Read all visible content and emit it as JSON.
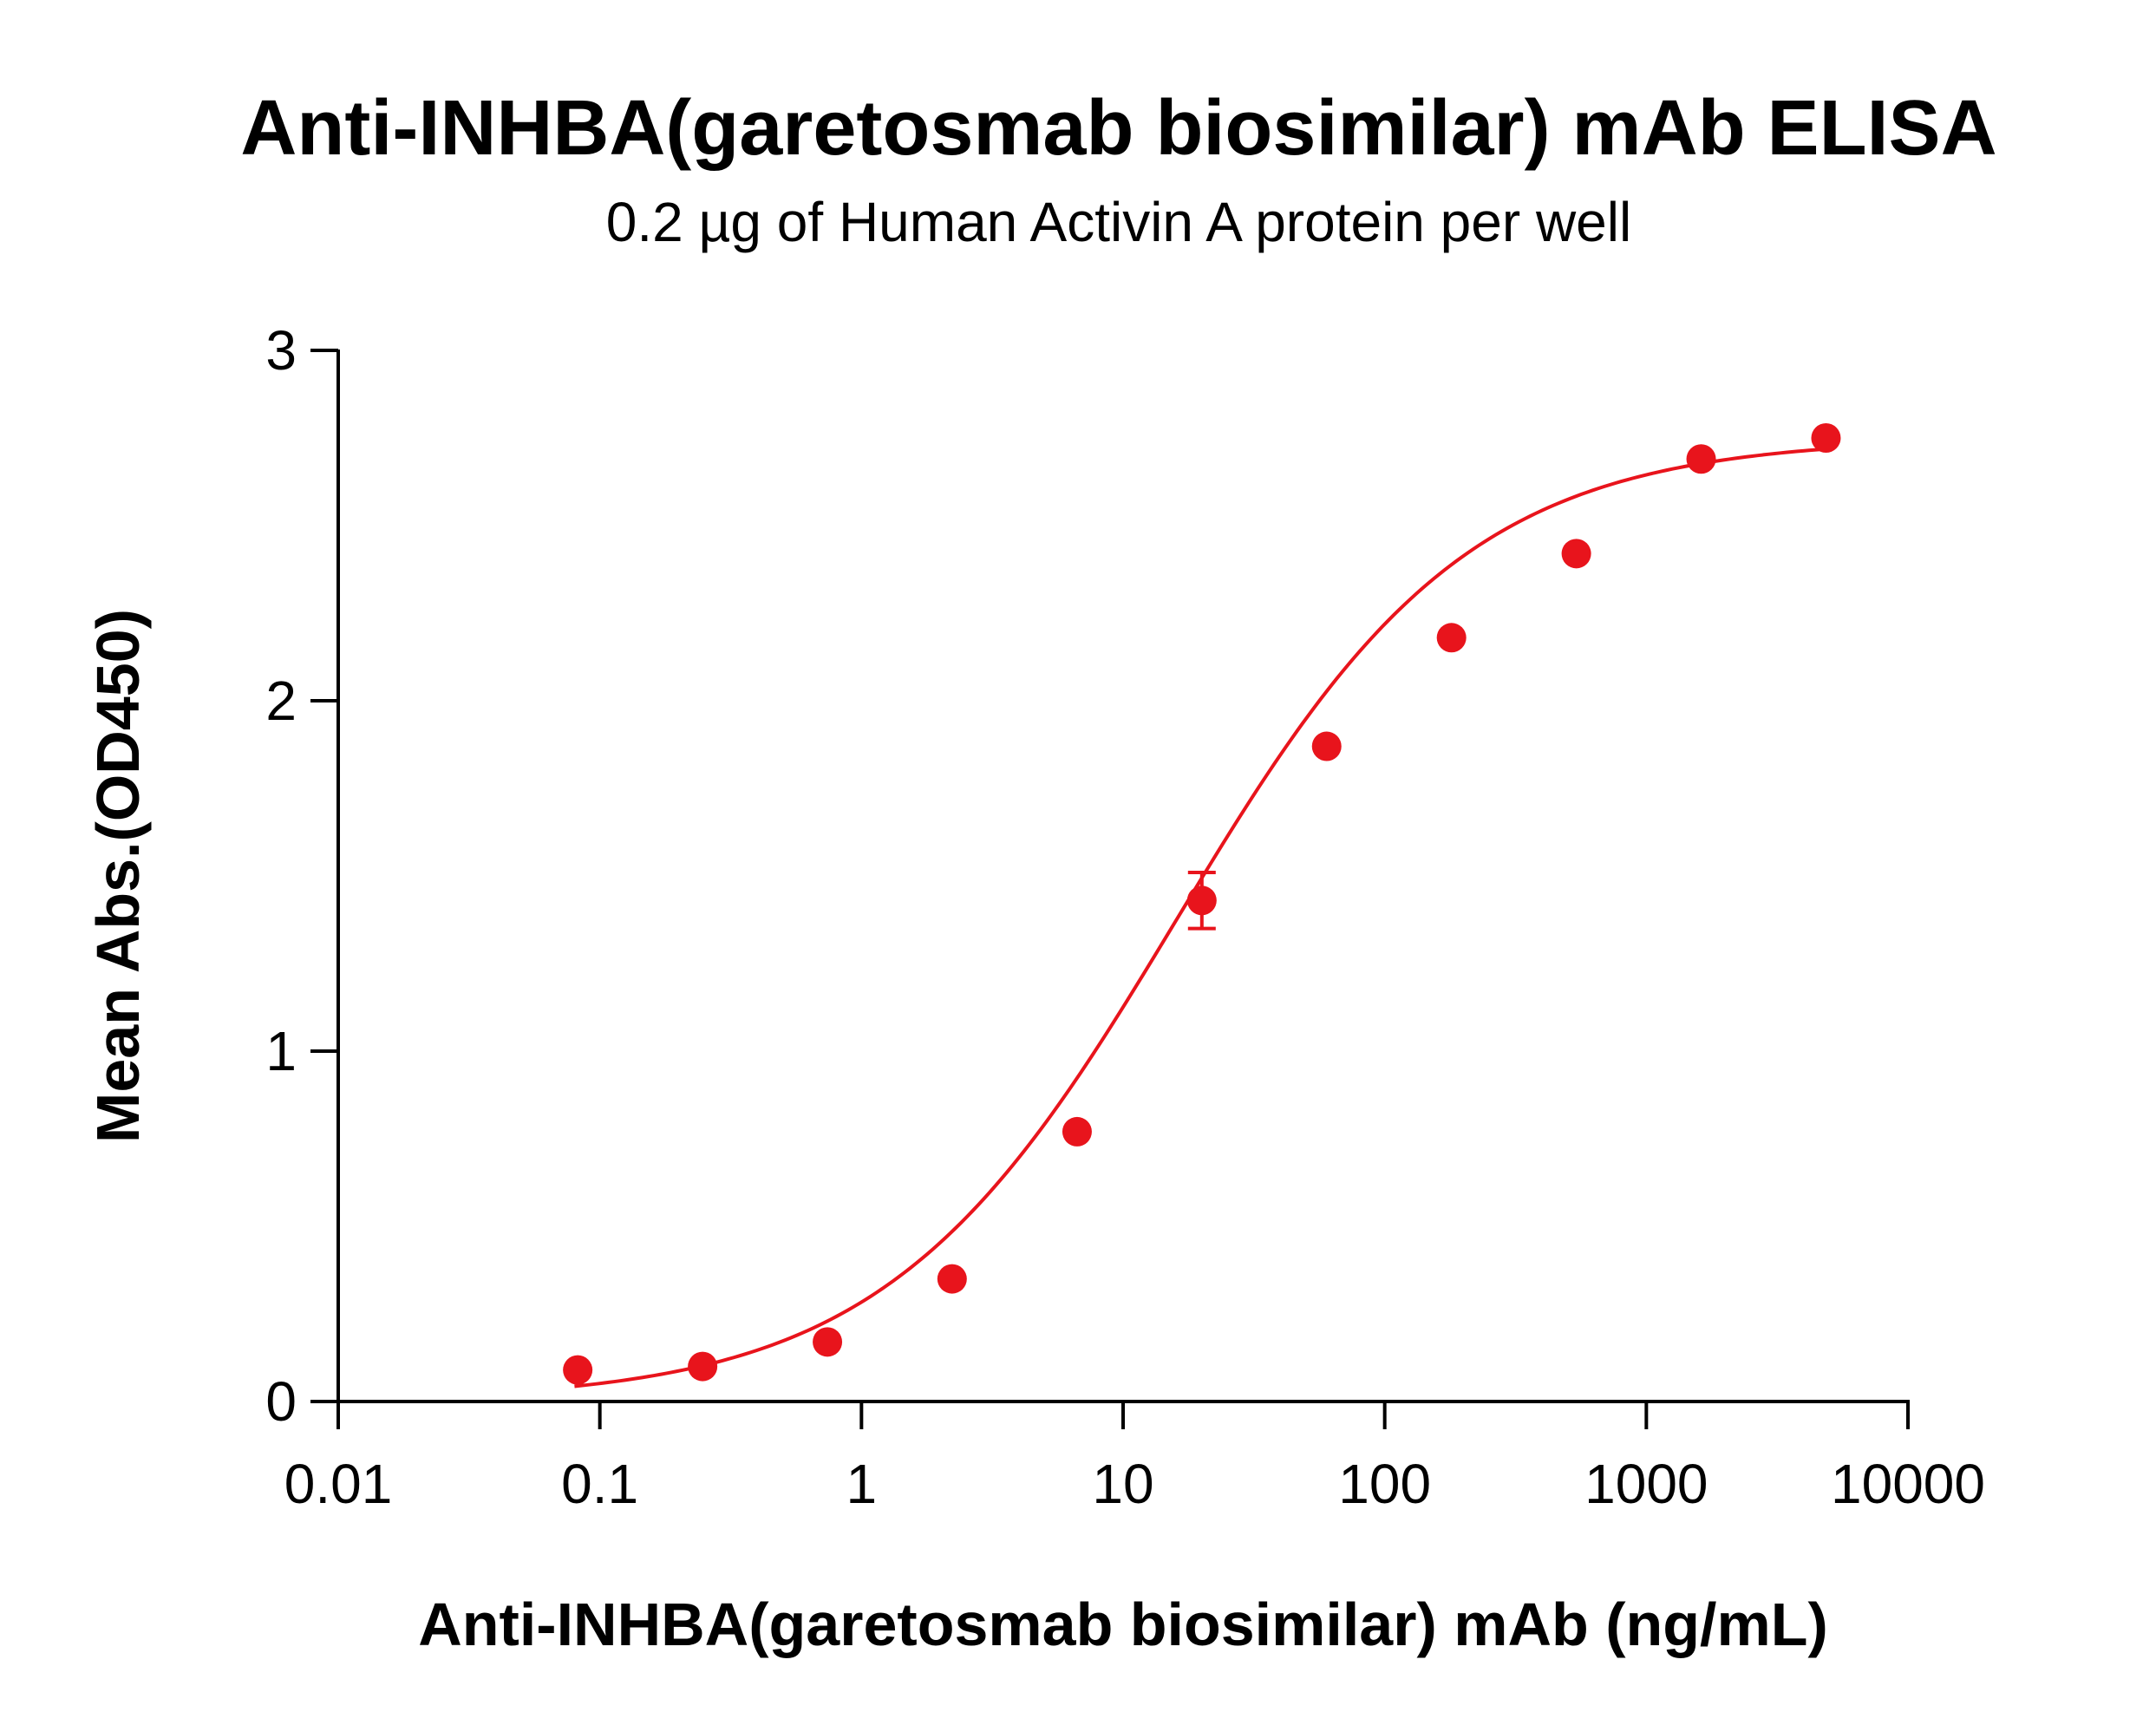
{
  "chart_data": {
    "type": "scatter",
    "title": "Anti-INHBA(garetosmab biosimilar) mAb ELISA",
    "subtitle": "0.2 µg of Human Activin A protein per well",
    "xlabel": "Anti-INHBA(garetosmab biosimilar) mAb (ng/mL)",
    "ylabel": "Mean Abs.(OD450)",
    "x_scale": "log",
    "xlim": [
      0.01,
      10000
    ],
    "ylim": [
      0,
      3
    ],
    "x_ticks": [
      0.01,
      0.1,
      1,
      10,
      100,
      1000,
      10000
    ],
    "x_tick_labels": [
      "0.01",
      "0.1",
      "1",
      "10",
      "100",
      "1000",
      "10000"
    ],
    "y_ticks": [
      0,
      1,
      2,
      3
    ],
    "y_tick_labels": [
      "0",
      "1",
      "2",
      "3"
    ],
    "grid": false,
    "color": "#e8141c",
    "series": [
      {
        "name": "Anti-INHBA(garetosmab biosimilar) mAb",
        "x": [
          0.0823,
          0.247,
          0.741,
          2.22,
          6.67,
          20,
          60,
          180,
          540,
          1620,
          4860
        ],
        "y": [
          0.09,
          0.1,
          0.17,
          0.35,
          0.77,
          1.43,
          1.87,
          2.18,
          2.42,
          2.69,
          2.75
        ],
        "error": [
          0,
          0,
          0,
          0,
          0,
          0.08,
          0,
          0,
          0,
          0,
          0
        ]
      }
    ],
    "fit": {
      "model": "4PL",
      "bottom": 0.0,
      "top": 2.75,
      "ec50": 16,
      "hill": 0.78,
      "x_range": [
        0.08,
        4860
      ]
    }
  }
}
